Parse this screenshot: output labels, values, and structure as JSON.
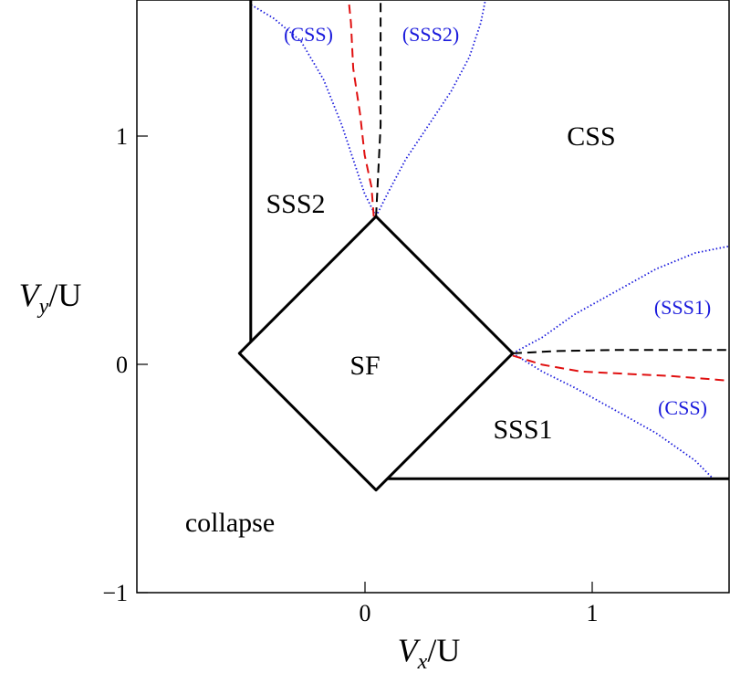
{
  "figure": {
    "x_axis": {
      "label_main": "V",
      "label_sub": "x",
      "label_rest": "/U",
      "ticks": [
        "0",
        "1"
      ]
    },
    "y_axis": {
      "label_main": "V",
      "label_sub": "y",
      "label_rest": "/U",
      "ticks": [
        "−1",
        "0",
        "1"
      ]
    },
    "regions": {
      "sf": "SF",
      "css": "CSS",
      "sss1": "SSS1",
      "sss2": "SSS2",
      "collapse": "collapse"
    },
    "annotations": {
      "top_css": "(CSS)",
      "top_sss2": "(SSS2)",
      "right_sss1": "(SSS1)",
      "right_css": "(CSS)"
    }
  },
  "chart_data": {
    "type": "phase-diagram",
    "xlim": [
      -1.0,
      1.6
    ],
    "ylim": [
      -1.0,
      1.6
    ],
    "xticks": [
      0,
      1
    ],
    "yticks": [
      -1,
      0,
      1
    ],
    "colors": {
      "boundary": "#000000",
      "dotted": "#1a1adc",
      "red_dashed": "#e01010",
      "black_dashed": "#000000"
    },
    "boundaries": {
      "sf_diamond": [
        [
          0.05,
          0.65
        ],
        [
          0.65,
          0.05
        ],
        [
          0.05,
          -0.55
        ],
        [
          -0.55,
          0.05
        ],
        [
          0.05,
          0.65
        ]
      ],
      "sss2_left_edge": [
        [
          -0.5,
          0.1
        ],
        [
          -0.5,
          1.6
        ]
      ],
      "sss1_bottom_edge": [
        [
          0.1,
          -0.5
        ],
        [
          1.6,
          -0.5
        ]
      ]
    },
    "dotted_curves": {
      "top_left": [
        [
          0.05,
          0.65
        ],
        [
          0.0,
          0.75
        ],
        [
          -0.05,
          0.9
        ],
        [
          -0.1,
          1.05
        ],
        [
          -0.18,
          1.25
        ],
        [
          -0.28,
          1.42
        ],
        [
          -0.4,
          1.52
        ],
        [
          -0.5,
          1.58
        ]
      ],
      "top_right": [
        [
          0.05,
          0.65
        ],
        [
          0.1,
          0.75
        ],
        [
          0.18,
          0.9
        ],
        [
          0.28,
          1.05
        ],
        [
          0.38,
          1.2
        ],
        [
          0.46,
          1.35
        ],
        [
          0.51,
          1.5
        ],
        [
          0.53,
          1.6
        ]
      ],
      "right_upper": [
        [
          0.65,
          0.05
        ],
        [
          0.78,
          0.12
        ],
        [
          0.92,
          0.22
        ],
        [
          1.1,
          0.32
        ],
        [
          1.28,
          0.42
        ],
        [
          1.45,
          0.49
        ],
        [
          1.6,
          0.52
        ]
      ],
      "right_lower": [
        [
          0.65,
          0.05
        ],
        [
          0.78,
          -0.03
        ],
        [
          0.92,
          -0.1
        ],
        [
          1.1,
          -0.2
        ],
        [
          1.28,
          -0.3
        ],
        [
          1.45,
          -0.42
        ],
        [
          1.53,
          -0.5
        ]
      ]
    },
    "dashed_curves": {
      "top_red": [
        [
          0.04,
          0.65
        ],
        [
          0.03,
          0.78
        ],
        [
          0.0,
          0.92
        ],
        [
          -0.02,
          1.1
        ],
        [
          -0.05,
          1.3
        ],
        [
          -0.06,
          1.5
        ],
        [
          -0.07,
          1.6
        ]
      ],
      "top_black": [
        [
          0.05,
          0.65
        ],
        [
          0.06,
          0.85
        ],
        [
          0.07,
          1.05
        ],
        [
          0.07,
          1.3
        ],
        [
          0.07,
          1.6
        ]
      ],
      "right_red": [
        [
          0.65,
          0.04
        ],
        [
          0.78,
          0.0
        ],
        [
          0.95,
          -0.03
        ],
        [
          1.15,
          -0.04
        ],
        [
          1.35,
          -0.05
        ],
        [
          1.6,
          -0.07
        ]
      ],
      "right_black": [
        [
          0.65,
          0.05
        ],
        [
          0.85,
          0.06
        ],
        [
          1.1,
          0.065
        ],
        [
          1.35,
          0.065
        ],
        [
          1.6,
          0.065
        ]
      ]
    }
  }
}
